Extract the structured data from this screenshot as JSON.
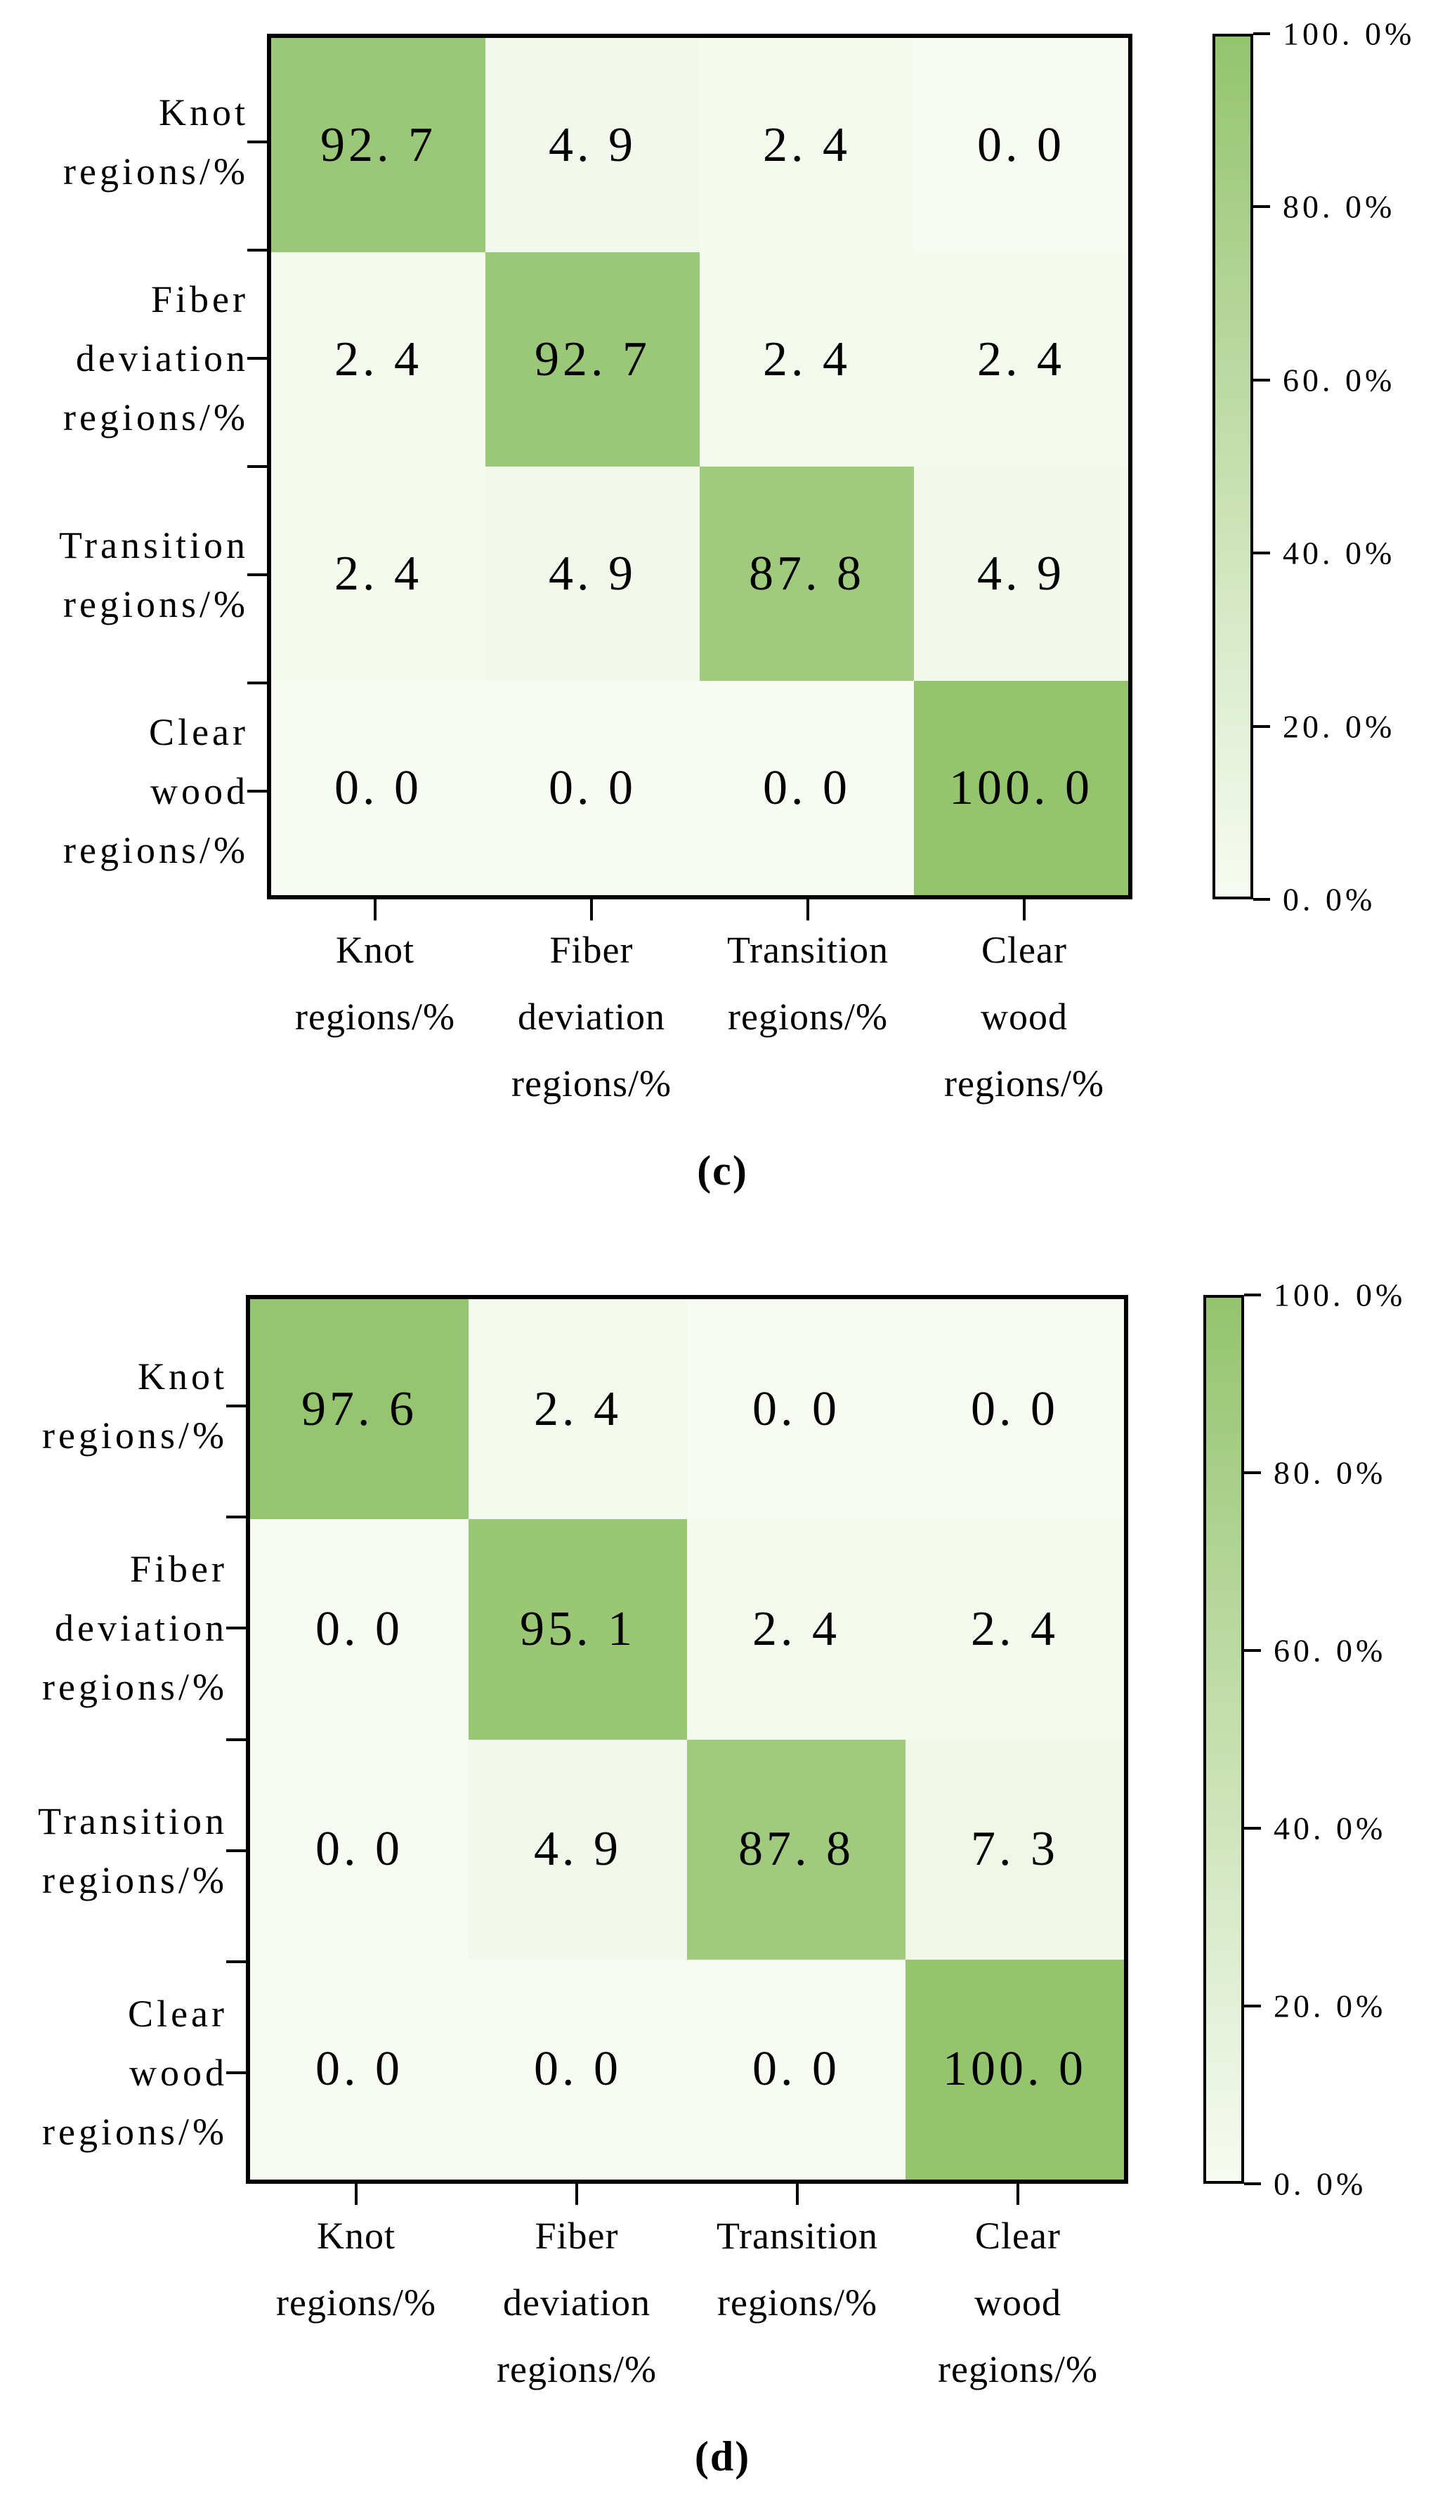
{
  "figure": {
    "background": "#ffffff",
    "colors": {
      "scale_low": "#f7fbf1",
      "scale_high": "#94c46e",
      "spine": "#000000",
      "text": "#000000"
    }
  },
  "chart_data": [
    {
      "type": "heatmap",
      "panel": "c",
      "caption": {
        "open": "(",
        "letter": "c",
        "close": ")"
      },
      "row_labels": [
        [
          "Knot",
          "regions/%"
        ],
        [
          "Fiber",
          "deviation",
          "regions/%"
        ],
        [
          "Transition",
          "regions/%"
        ],
        [
          "Clear",
          "wood",
          "regions/%"
        ]
      ],
      "col_labels": [
        [
          "Knot",
          "regions/%"
        ],
        [
          "Fiber",
          "deviation",
          "regions/%"
        ],
        [
          "Transition",
          "regions/%"
        ],
        [
          "Clear",
          "wood",
          "regions/%"
        ]
      ],
      "matrix": [
        [
          92.7,
          4.9,
          2.4,
          0.0
        ],
        [
          2.4,
          92.7,
          2.4,
          2.4
        ],
        [
          2.4,
          4.9,
          87.8,
          4.9
        ],
        [
          0.0,
          0.0,
          0.0,
          100.0
        ]
      ],
      "value_min": 0,
      "value_max": 100,
      "colorbar_ticks": [
        100,
        80,
        60,
        40,
        20,
        0
      ],
      "colorbar_unit": "%",
      "grid": false,
      "legend_position": "right-colorbar"
    },
    {
      "type": "heatmap",
      "panel": "d",
      "caption": {
        "open": "(",
        "letter": "d",
        "close": ")"
      },
      "row_labels": [
        [
          "Knot",
          "regions/%"
        ],
        [
          "Fiber",
          "deviation",
          "regions/%"
        ],
        [
          "Transition",
          "regions/%"
        ],
        [
          "Clear",
          "wood",
          "regions/%"
        ]
      ],
      "col_labels": [
        [
          "Knot",
          "regions/%"
        ],
        [
          "Fiber",
          "deviation",
          "regions/%"
        ],
        [
          "Transition",
          "regions/%"
        ],
        [
          "Clear",
          "wood",
          "regions/%"
        ]
      ],
      "matrix": [
        [
          97.6,
          2.4,
          0.0,
          0.0
        ],
        [
          0.0,
          95.1,
          2.4,
          2.4
        ],
        [
          0.0,
          4.9,
          87.8,
          7.3
        ],
        [
          0.0,
          0.0,
          0.0,
          100.0
        ]
      ],
      "value_min": 0,
      "value_max": 100,
      "colorbar_ticks": [
        100,
        80,
        60,
        40,
        20,
        0
      ],
      "colorbar_unit": "%",
      "grid": false,
      "legend_position": "right-colorbar"
    }
  ]
}
